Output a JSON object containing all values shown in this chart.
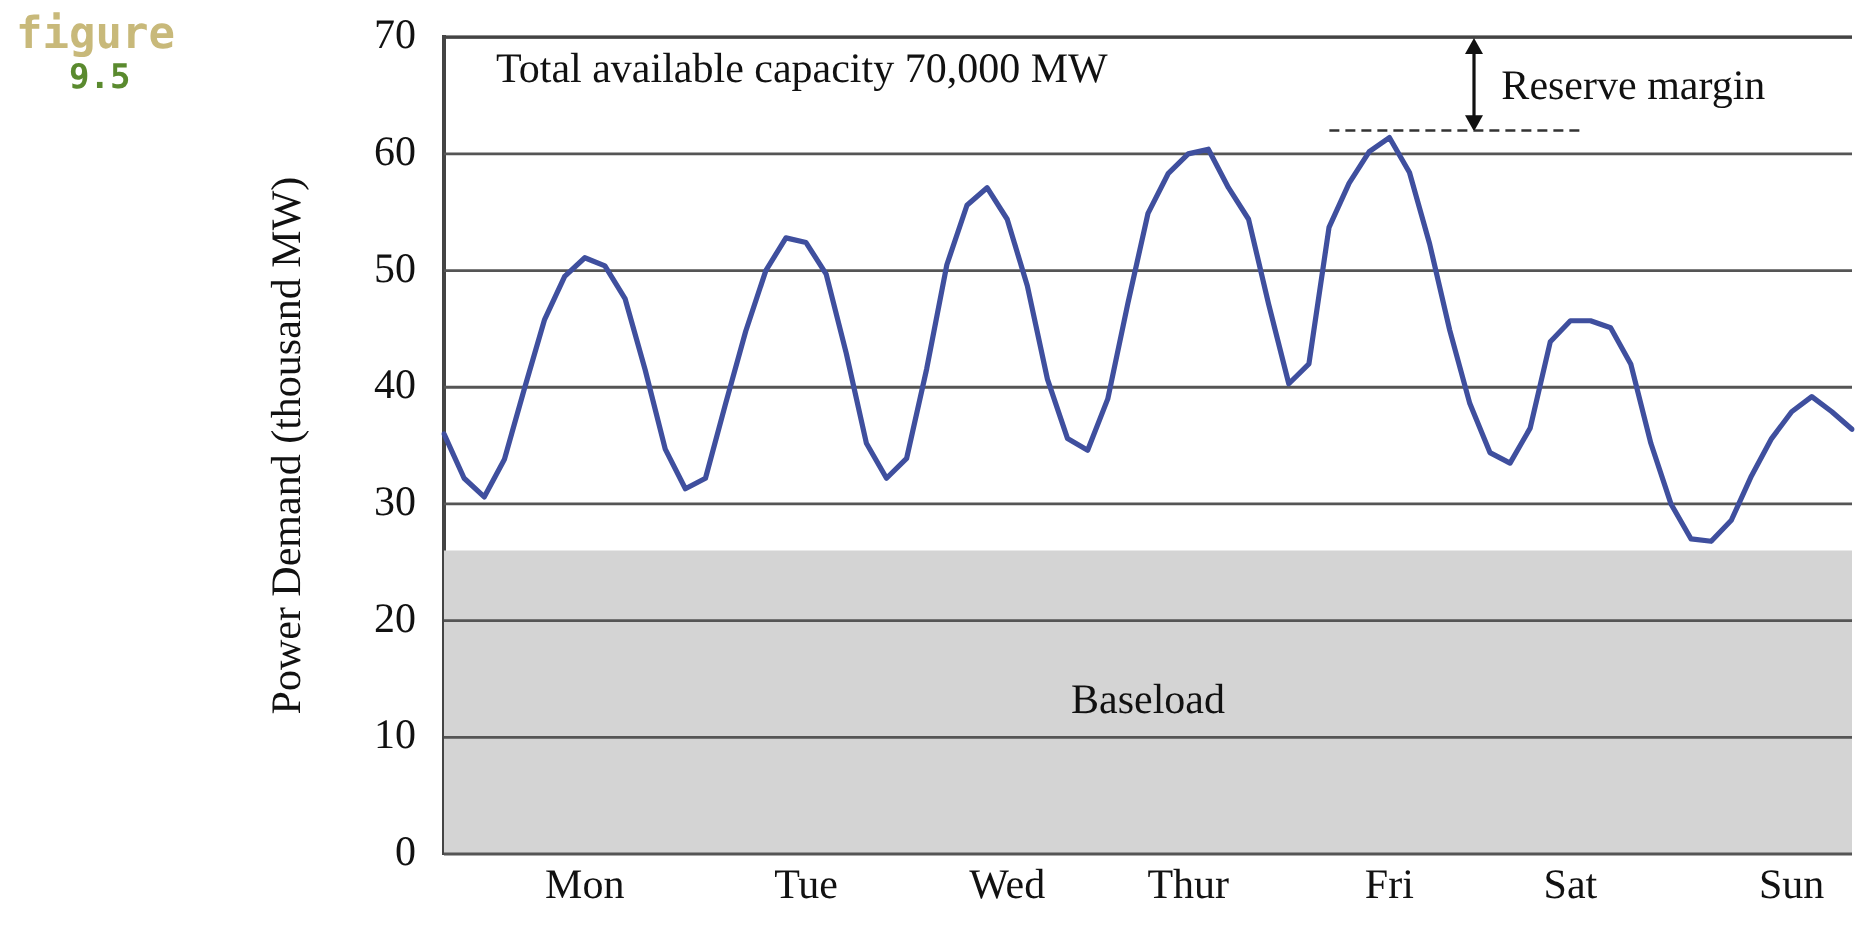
{
  "chart_data": {
    "type": "line",
    "ylabel": "Power Demand (thousand MW)",
    "annotations": [
      "figure 9.5"
    ],
    "categories": [
      null,
      null,
      null,
      null,
      null,
      null,
      null,
      "Mon",
      null,
      null,
      null,
      null,
      null,
      null,
      null,
      null,
      null,
      null,
      "Tue",
      null,
      null,
      null,
      null,
      null,
      null,
      null,
      null,
      null,
      "Wed",
      null,
      null,
      null,
      null,
      null,
      null,
      null,
      null,
      "Thur",
      null,
      null,
      null,
      null,
      null,
      null,
      null,
      null,
      null,
      "Fri",
      null,
      null,
      null,
      null,
      null,
      null,
      null,
      null,
      "Sat",
      null,
      null,
      null,
      null,
      null,
      null,
      null,
      null,
      null,
      null,
      "Sun",
      null,
      null,
      null
    ],
    "ylim": [
      0,
      70
    ],
    "yticks": [
      0,
      10,
      20,
      30,
      40,
      50,
      60,
      70
    ],
    "grid": "y",
    "legend": false,
    "marker": "none",
    "line_style": "solid",
    "bands": [
      {
        "axis": "y",
        "from": 0,
        "to": 26,
        "label": "Baseload",
        "color": "#d4d4d4"
      }
    ],
    "ref_lines": [
      {
        "axis": "y",
        "value": 70,
        "label": "Total available capacity 70,000 MW",
        "color": "#444444",
        "line_style": "solid"
      },
      {
        "axis": "y",
        "value": 62,
        "label": "Reserve margin",
        "color": "#333333",
        "line_style": "dashed"
      }
    ],
    "series": [
      {
        "color": "#3f4f9e",
        "values": [
          36,
          32.2,
          30.6,
          33.8,
          39.9,
          45.8,
          49.5,
          51.1,
          50.4,
          47.6,
          41.5,
          34.7,
          31.3,
          32.2,
          38.6,
          44.8,
          50,
          52.8,
          52.4,
          49.7,
          42.9,
          35.2,
          32.2,
          33.9,
          41.6,
          50.5,
          55.6,
          57.1,
          54.4,
          48.7,
          40.7,
          35.6,
          34.6,
          39,
          47.2,
          54.9,
          58.3,
          60,
          60.4,
          57.1,
          54.4,
          47.1,
          40.3,
          42,
          53.7,
          57.5,
          60.2,
          61.4,
          58.4,
          52.3,
          44.9,
          38.6,
          34.4,
          33.5,
          36.5,
          43.9,
          45.7,
          45.7,
          45.1,
          42,
          35.2,
          30,
          27,
          26.8,
          28.6,
          32.4,
          35.6,
          37.9,
          39.2,
          37.9,
          36.4
        ]
      }
    ]
  }
}
